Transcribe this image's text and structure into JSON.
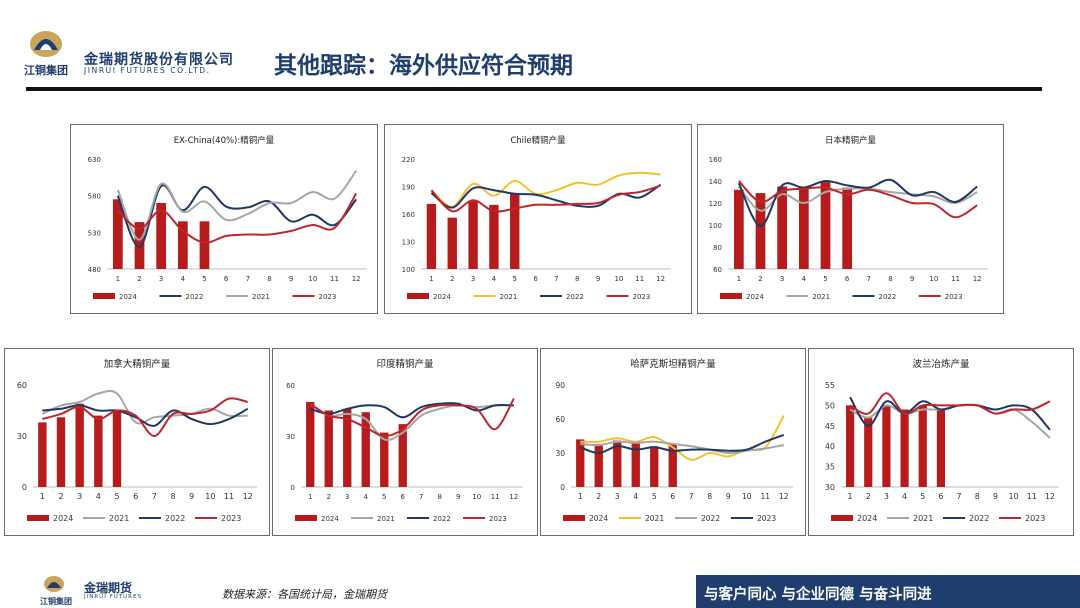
{
  "header": {
    "logo_text": "江铜集团",
    "brand_cn": "金瑞期货股份有限公司",
    "brand_en": "JINRUI FUTURES CO.LTD.",
    "title": "其他跟踪：海外供应符合预期"
  },
  "footer": {
    "logo_text": "江铜集团",
    "brand_cn": "金瑞期货",
    "brand_en": "JINRUI FUTURES",
    "source": "数据来源：各国统计局，金瑞期货",
    "slogan": "与客户同心 与企业同德 与奋斗同进"
  },
  "colors": {
    "brand_navy": "#1f3e6e",
    "bar_2024": "#b71c1c",
    "line_2021": "#a6a6a6",
    "line_2021_gold": "#f2c12e",
    "line_2022": "#1f3864",
    "line_2023": "#c0262d"
  },
  "chart_data": [
    {
      "id": "exchina",
      "type": "bar+line",
      "title": "EX-China(40%):精铜产量",
      "categories": [
        "1",
        "2",
        "3",
        "4",
        "5",
        "6",
        "7",
        "8",
        "9",
        "10",
        "11",
        "12"
      ],
      "ylim": [
        480,
        630
      ],
      "yticks": [
        480,
        530,
        580,
        630
      ],
      "bar_series": {
        "name": "2024",
        "values": [
          575,
          544,
          570,
          545,
          545
        ]
      },
      "series": [
        {
          "name": "2022",
          "color": "#1f3864",
          "values": [
            580,
            510,
            593,
            560,
            592,
            565,
            564,
            572,
            545,
            554,
            540,
            575
          ]
        },
        {
          "name": "2021",
          "color": "#a6a6a6",
          "values": [
            588,
            520,
            596,
            558,
            572,
            547,
            555,
            570,
            570,
            585,
            576,
            614
          ]
        },
        {
          "name": "2023",
          "color": "#c0262d",
          "values": [
            560,
            535,
            560,
            532,
            516,
            525,
            527,
            527,
            532,
            540,
            536,
            583
          ]
        }
      ],
      "legend": [
        "2024",
        "2022",
        "2021",
        "2023"
      ]
    },
    {
      "id": "chile",
      "type": "bar+line",
      "title": "Chile精铜产量",
      "categories": [
        "1",
        "2",
        "3",
        "4",
        "5",
        "6",
        "7",
        "8",
        "9",
        "10",
        "11",
        "12"
      ],
      "ylim": [
        100,
        220
      ],
      "yticks": [
        100,
        130,
        160,
        190,
        220
      ],
      "bar_series": {
        "name": "2024",
        "values": [
          171,
          156,
          174,
          170,
          182
        ]
      },
      "series": [
        {
          "name": "2021",
          "color": "#f2c12e",
          "values": [
            186,
            168,
            193,
            180,
            196,
            182,
            186,
            194,
            192,
            202,
            205,
            203
          ]
        },
        {
          "name": "2022",
          "color": "#1f3864",
          "values": [
            183,
            167,
            188,
            186,
            182,
            181,
            175,
            169,
            169,
            182,
            178,
            192
          ]
        },
        {
          "name": "2023",
          "color": "#c0262d",
          "values": [
            186,
            163,
            175,
            163,
            166,
            170,
            170,
            171,
            172,
            181,
            184,
            191
          ]
        }
      ],
      "legend": [
        "2024",
        "2021",
        "2022",
        "2023"
      ]
    },
    {
      "id": "japan",
      "type": "bar+line",
      "title": "日本精铜产量",
      "categories": [
        "1",
        "2",
        "3",
        "4",
        "5",
        "6",
        "7",
        "8",
        "9",
        "10",
        "11",
        "12"
      ],
      "ylim": [
        60,
        160
      ],
      "yticks": [
        60,
        80,
        100,
        120,
        140,
        160
      ],
      "bar_series": {
        "name": "2024",
        "values": [
          132,
          129,
          135,
          135,
          139,
          134
        ]
      },
      "series": [
        {
          "name": "2021",
          "color": "#a6a6a6",
          "values": [
            135,
            113,
            128,
            120,
            130,
            133,
            133,
            130,
            128,
            126,
            120,
            130
          ]
        },
        {
          "name": "2022",
          "color": "#1f3864",
          "values": [
            138,
            99,
            136,
            134,
            140,
            136,
            134,
            141,
            127,
            130,
            121,
            135
          ]
        },
        {
          "name": "2023",
          "color": "#c0262d",
          "values": [
            140,
            121,
            131,
            133,
            134,
            128,
            132,
            127,
            120,
            119,
            107,
            118
          ]
        }
      ],
      "legend": [
        "2024",
        "2021",
        "2022",
        "2023"
      ]
    },
    {
      "id": "canada",
      "type": "bar+line",
      "title": "加拿大精铜产量",
      "categories": [
        "1",
        "2",
        "3",
        "4",
        "5",
        "6",
        "7",
        "8",
        "9",
        "10",
        "11",
        "12"
      ],
      "ylim": [
        0,
        60
      ],
      "yticks": [
        0,
        30,
        60
      ],
      "bar_series": {
        "name": "2024",
        "values": [
          38,
          41,
          49,
          42,
          45
        ]
      },
      "series": [
        {
          "name": "2021",
          "color": "#a6a6a6",
          "values": [
            43,
            48,
            50,
            55,
            55,
            38,
            41,
            42,
            43,
            46,
            42,
            42
          ]
        },
        {
          "name": "2022",
          "color": "#1f3864",
          "values": [
            45,
            46,
            48,
            45,
            45,
            41,
            36,
            45,
            40,
            37,
            40,
            46
          ]
        },
        {
          "name": "2023",
          "color": "#c0262d",
          "values": [
            40,
            43,
            47,
            40,
            45,
            42,
            30,
            43,
            43,
            45,
            52,
            50
          ]
        }
      ],
      "legend": [
        "2024",
        "2021",
        "2022",
        "2023"
      ]
    },
    {
      "id": "india",
      "type": "bar+line",
      "title": "印度精铜产量",
      "categories": [
        "1",
        "2",
        "3",
        "4",
        "5",
        "6",
        "7",
        "8",
        "9",
        "10",
        "11",
        "12"
      ],
      "ylim": [
        0,
        60
      ],
      "yticks": [
        0,
        30,
        60
      ],
      "bar_series": {
        "name": "2024",
        "values": [
          50,
          45,
          46,
          44,
          32,
          37
        ]
      },
      "series": [
        {
          "name": "2021",
          "color": "#a6a6a6",
          "values": [
            49,
            42,
            43,
            40,
            28,
            32,
            42,
            46,
            48,
            47,
            48,
            48
          ]
        },
        {
          "name": "2022",
          "color": "#1f3864",
          "values": [
            46,
            43,
            46,
            48,
            47,
            41,
            47,
            49,
            49,
            45,
            48,
            48
          ]
        },
        {
          "name": "2023",
          "color": "#c0262d",
          "values": [
            49,
            42,
            40,
            35,
            30,
            34,
            45,
            48,
            48,
            46,
            34,
            52
          ]
        }
      ],
      "legend": [
        "2024",
        "2021",
        "2022",
        "2023"
      ]
    },
    {
      "id": "kazakhstan",
      "type": "bar+line",
      "title": "哈萨克斯坦精铜产量",
      "categories": [
        "1",
        "2",
        "3",
        "4",
        "5",
        "6",
        "7",
        "8",
        "9",
        "10",
        "11",
        "12"
      ],
      "ylim": [
        0,
        90
      ],
      "yticks": [
        0,
        30,
        60,
        90
      ],
      "bar_series": {
        "name": "2024",
        "values": [
          42,
          38,
          41,
          40,
          36,
          38
        ]
      },
      "series": [
        {
          "name": "2021",
          "color": "#f2c12e",
          "values": [
            40,
            40,
            43,
            40,
            44,
            35,
            24,
            30,
            27,
            33,
            35,
            63
          ]
        },
        {
          "name": "2022",
          "color": "#a6a6a6",
          "values": [
            38,
            37,
            40,
            39,
            40,
            38,
            36,
            33,
            30,
            32,
            34,
            37
          ]
        },
        {
          "name": "2023",
          "color": "#1f3864",
          "values": [
            35,
            30,
            36,
            33,
            35,
            32,
            33,
            33,
            32,
            33,
            40,
            46
          ]
        }
      ],
      "legend": [
        "2024",
        "2021",
        "2022",
        "2023"
      ]
    },
    {
      "id": "poland",
      "type": "bar+line",
      "title": "波兰冶炼产量",
      "categories": [
        "1",
        "2",
        "3",
        "4",
        "5",
        "6",
        "7",
        "8",
        "9",
        "10",
        "11",
        "12"
      ],
      "ylim": [
        30,
        55
      ],
      "yticks": [
        30,
        35,
        40,
        45,
        50,
        55
      ],
      "bar_series": {
        "name": "2024",
        "values": [
          50,
          47,
          50,
          49,
          50,
          49
        ]
      },
      "series": [
        {
          "name": "2021",
          "color": "#a6a6a6",
          "values": [
            49,
            47,
            50,
            48,
            49,
            49,
            50,
            50,
            48,
            49,
            46,
            42
          ]
        },
        {
          "name": "2022",
          "color": "#1f3864",
          "values": [
            52,
            45,
            51,
            48,
            51,
            49,
            50,
            50,
            49,
            50,
            49,
            44
          ]
        },
        {
          "name": "2023",
          "color": "#c0262d",
          "values": [
            50,
            48,
            53,
            48,
            50,
            50,
            50,
            50,
            48,
            49,
            49,
            51
          ]
        }
      ],
      "legend": [
        "2024",
        "2021",
        "2022",
        "2023"
      ]
    }
  ]
}
